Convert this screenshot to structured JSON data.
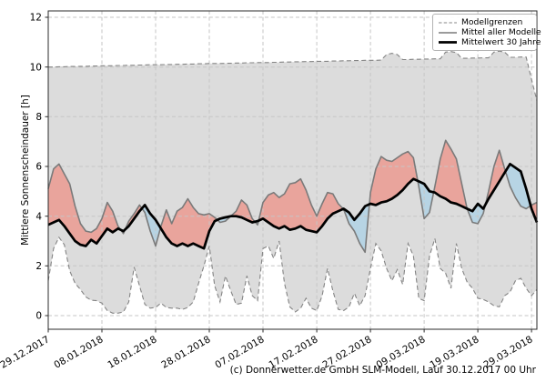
{
  "figure": {
    "caption": "(c) Donnerwetter.de GmbH SLM-Modell, Lauf 30.12.2017 00 Uhr"
  },
  "legend": {
    "items": [
      {
        "label": "Modellgrenzen",
        "style": "dashed-gray"
      },
      {
        "label": "Mittel aller Modelle",
        "style": "solid-gray"
      },
      {
        "label": "Mittelwert 30 Jahre",
        "style": "solid-black-bold"
      }
    ]
  },
  "chart_data": {
    "type": "line",
    "title": "",
    "xlabel": "",
    "ylabel": "Mittlere Sonnenscheindauer [h]",
    "ylim": [
      -0.55,
      12.26
    ],
    "y_ticks": [
      0,
      2,
      4,
      6,
      8,
      10,
      12
    ],
    "x_tick_days": [
      0,
      10,
      20,
      30,
      40,
      50,
      60,
      70,
      80,
      90
    ],
    "x_tick_labels": [
      "29.12.2017",
      "08.01.2018",
      "18.01.2018",
      "28.01.2018",
      "07.02.2018",
      "17.02.2018",
      "27.02.2018",
      "09.03.2018",
      "19.03.2018",
      "29.03.2018"
    ],
    "start_date": "29.12.2017",
    "n_days": 92,
    "grid": true,
    "legend_position": "upper right",
    "fills": {
      "band": "#dcdcdc",
      "above": "#e9a49c",
      "below": "#b7d4e4"
    },
    "series": [
      {
        "name": "Modellgrenze oben",
        "style": "dashed",
        "color": "#848484",
        "values": [
          10.0,
          10.0,
          10.01,
          10.01,
          10.02,
          10.02,
          10.03,
          10.03,
          10.04,
          10.04,
          10.05,
          10.05,
          10.05,
          10.06,
          10.06,
          10.07,
          10.07,
          10.08,
          10.08,
          10.09,
          10.09,
          10.09,
          10.1,
          10.1,
          10.11,
          10.11,
          10.12,
          10.12,
          10.13,
          10.13,
          10.14,
          10.14,
          10.14,
          10.15,
          10.15,
          10.16,
          10.16,
          10.17,
          10.17,
          10.18,
          10.18,
          10.18,
          10.19,
          10.19,
          10.2,
          10.2,
          10.21,
          10.21,
          10.22,
          10.22,
          10.23,
          10.23,
          10.23,
          10.24,
          10.24,
          10.25,
          10.25,
          10.26,
          10.26,
          10.27,
          10.27,
          10.27,
          10.28,
          10.5,
          10.55,
          10.5,
          10.3,
          10.3,
          10.31,
          10.31,
          10.32,
          10.32,
          10.33,
          10.33,
          10.6,
          10.62,
          10.58,
          10.35,
          10.35,
          10.36,
          10.36,
          10.37,
          10.37,
          10.6,
          10.64,
          10.6,
          10.39,
          10.39,
          10.4,
          10.4,
          9.5,
          8.65
        ]
      },
      {
        "name": "Modellgrenze unten",
        "style": "dashed",
        "color": "#848484",
        "values": [
          1.4,
          2.7,
          3.15,
          2.85,
          1.8,
          1.3,
          1.05,
          0.75,
          0.62,
          0.6,
          0.5,
          0.2,
          0.1,
          0.1,
          0.15,
          0.55,
          1.95,
          1.2,
          0.45,
          0.3,
          0.33,
          0.5,
          0.33,
          0.3,
          0.3,
          0.25,
          0.33,
          0.55,
          1.3,
          2.0,
          2.8,
          1.2,
          0.55,
          1.6,
          1.0,
          0.45,
          0.5,
          1.6,
          0.8,
          0.6,
          2.7,
          2.8,
          2.3,
          3.0,
          1.3,
          0.35,
          0.15,
          0.3,
          0.7,
          0.3,
          0.2,
          0.8,
          1.9,
          1.0,
          0.25,
          0.2,
          0.35,
          0.9,
          0.4,
          0.8,
          1.9,
          2.9,
          2.6,
          1.9,
          1.4,
          1.85,
          1.25,
          2.9,
          2.4,
          0.7,
          0.6,
          2.4,
          3.1,
          1.9,
          1.7,
          1.1,
          2.9,
          1.9,
          1.35,
          1.1,
          0.7,
          0.65,
          0.55,
          0.4,
          0.35,
          0.8,
          0.95,
          1.4,
          1.5,
          1.1,
          0.8,
          1.05
        ]
      },
      {
        "name": "Mittel aller Modelle",
        "style": "solid",
        "color": "#7a7a7a",
        "values": [
          5.1,
          5.9,
          6.1,
          5.7,
          5.3,
          4.4,
          3.7,
          3.4,
          3.35,
          3.5,
          3.9,
          4.55,
          4.2,
          3.6,
          3.3,
          3.8,
          4.1,
          4.45,
          4.15,
          3.4,
          2.8,
          3.6,
          4.25,
          3.7,
          4.2,
          4.35,
          4.7,
          4.35,
          4.1,
          4.05,
          4.1,
          3.95,
          3.75,
          3.8,
          4.0,
          4.2,
          4.65,
          4.45,
          3.9,
          3.65,
          4.55,
          4.85,
          4.95,
          4.75,
          4.9,
          5.3,
          5.35,
          5.5,
          5.05,
          4.45,
          4.0,
          4.5,
          4.95,
          4.9,
          4.5,
          4.28,
          3.7,
          3.4,
          2.9,
          2.55,
          4.95,
          5.9,
          6.4,
          6.25,
          6.2,
          6.35,
          6.5,
          6.6,
          6.35,
          5.2,
          3.9,
          4.15,
          5.2,
          6.3,
          7.05,
          6.7,
          6.3,
          5.3,
          4.3,
          3.75,
          3.7,
          4.1,
          5.0,
          6.0,
          6.65,
          5.9,
          5.2,
          4.75,
          4.4,
          4.3,
          4.45,
          4.55
        ]
      },
      {
        "name": "Mittelwert 30 Jahre",
        "style": "solid-bold",
        "color": "#000000",
        "values": [
          3.65,
          3.75,
          3.85,
          3.6,
          3.3,
          3.0,
          2.85,
          2.8,
          3.05,
          2.9,
          3.2,
          3.5,
          3.35,
          3.5,
          3.4,
          3.6,
          3.9,
          4.2,
          4.45,
          4.1,
          3.85,
          3.5,
          3.15,
          2.9,
          2.8,
          2.9,
          2.8,
          2.9,
          2.8,
          2.7,
          3.4,
          3.8,
          3.9,
          3.95,
          4.0,
          4.0,
          3.95,
          3.85,
          3.75,
          3.8,
          3.9,
          3.75,
          3.6,
          3.5,
          3.6,
          3.45,
          3.5,
          3.6,
          3.45,
          3.4,
          3.35,
          3.6,
          3.9,
          4.1,
          4.2,
          4.3,
          4.15,
          3.85,
          4.1,
          4.4,
          4.5,
          4.45,
          4.55,
          4.6,
          4.7,
          4.85,
          5.05,
          5.3,
          5.5,
          5.4,
          5.3,
          5.0,
          4.95,
          4.8,
          4.7,
          4.55,
          4.5,
          4.4,
          4.3,
          4.2,
          4.5,
          4.3,
          4.7,
          5.05,
          5.4,
          5.75,
          6.1,
          5.95,
          5.8,
          5.1,
          4.3,
          3.75
        ]
      }
    ]
  }
}
